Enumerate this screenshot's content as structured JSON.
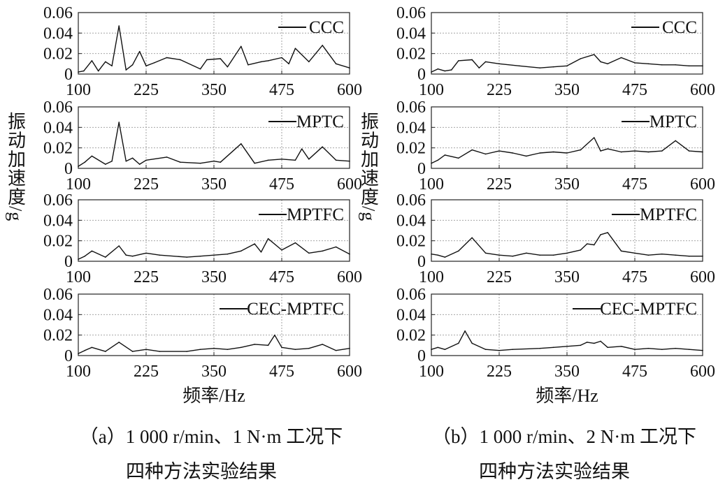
{
  "panels": [
    {
      "caption_line1": "（a）1 000 r/min、1 N·m 工况下",
      "caption_line2": "四种方法实验结果",
      "y_axis_label": "振动加速度/g",
      "x_axis_label": "频率/Hz"
    },
    {
      "caption_line1": "（b）1 000 r/min、2 N·m 工况下",
      "caption_line2": "四种方法实验结果",
      "y_axis_label": "振动加速度/g",
      "x_axis_label": "频率/Hz"
    }
  ],
  "chart_data": [
    {
      "type": "line",
      "panel": "a",
      "series": [
        {
          "name": "CCC",
          "x": [
            100,
            110,
            125,
            137,
            150,
            162,
            175,
            188,
            200,
            213,
            225,
            240,
            263,
            288,
            325,
            337,
            362,
            375,
            400,
            413,
            437,
            450,
            475,
            488,
            500,
            525,
            550,
            575,
            600
          ],
          "values": [
            0.002,
            0.003,
            0.013,
            0.003,
            0.012,
            0.008,
            0.047,
            0.004,
            0.009,
            0.022,
            0.008,
            0.011,
            0.016,
            0.014,
            0.005,
            0.014,
            0.015,
            0.007,
            0.027,
            0.009,
            0.012,
            0.013,
            0.016,
            0.01,
            0.025,
            0.012,
            0.028,
            0.01,
            0.006
          ]
        },
        {
          "name": "MPTC",
          "x": [
            100,
            112,
            125,
            150,
            162,
            175,
            188,
            200,
            213,
            225,
            263,
            288,
            325,
            350,
            362,
            400,
            425,
            450,
            475,
            500,
            512,
            525,
            550,
            575,
            600
          ],
          "values": [
            0.002,
            0.006,
            0.012,
            0.004,
            0.007,
            0.045,
            0.007,
            0.01,
            0.004,
            0.008,
            0.011,
            0.006,
            0.005,
            0.007,
            0.006,
            0.024,
            0.005,
            0.008,
            0.009,
            0.008,
            0.019,
            0.009,
            0.021,
            0.008,
            0.007
          ]
        },
        {
          "name": "MPTFC",
          "x": [
            100,
            112,
            125,
            150,
            175,
            188,
            200,
            225,
            250,
            300,
            325,
            350,
            375,
            400,
            425,
            437,
            450,
            475,
            500,
            525,
            550,
            575,
            600
          ],
          "values": [
            0.002,
            0.005,
            0.01,
            0.004,
            0.015,
            0.006,
            0.005,
            0.008,
            0.006,
            0.004,
            0.005,
            0.006,
            0.007,
            0.01,
            0.017,
            0.009,
            0.022,
            0.011,
            0.018,
            0.008,
            0.01,
            0.014,
            0.007
          ]
        },
        {
          "name": "CEC-MPTFC",
          "x": [
            100,
            112,
            125,
            150,
            175,
            200,
            225,
            250,
            300,
            325,
            350,
            375,
            400,
            425,
            450,
            462,
            475,
            500,
            525,
            550,
            575,
            600
          ],
          "values": [
            0.002,
            0.005,
            0.008,
            0.004,
            0.013,
            0.004,
            0.006,
            0.004,
            0.004,
            0.006,
            0.007,
            0.006,
            0.008,
            0.011,
            0.01,
            0.02,
            0.008,
            0.006,
            0.007,
            0.011,
            0.005,
            0.007
          ]
        }
      ],
      "xlim": [
        100,
        600
      ],
      "ylim": [
        0,
        0.06
      ],
      "x_ticks": [
        "100",
        "225",
        "350",
        "475",
        "600"
      ],
      "y_ticks": [
        "0",
        "0.02",
        "0.04",
        "0.06"
      ],
      "grid": true,
      "legend_position": "top-right"
    },
    {
      "type": "line",
      "panel": "b",
      "series": [
        {
          "name": "CCC",
          "x": [
            100,
            112,
            125,
            137,
            150,
            175,
            188,
            200,
            225,
            262,
            300,
            325,
            350,
            375,
            400,
            412,
            425,
            450,
            475,
            500,
            525,
            550,
            575,
            600
          ],
          "values": [
            0.002,
            0.005,
            0.003,
            0.004,
            0.013,
            0.014,
            0.006,
            0.012,
            0.01,
            0.008,
            0.006,
            0.007,
            0.008,
            0.015,
            0.019,
            0.012,
            0.01,
            0.016,
            0.011,
            0.01,
            0.009,
            0.009,
            0.008,
            0.008
          ]
        },
        {
          "name": "MPTC",
          "x": [
            100,
            112,
            125,
            150,
            175,
            200,
            225,
            250,
            275,
            300,
            325,
            350,
            375,
            400,
            412,
            425,
            450,
            475,
            500,
            525,
            550,
            575,
            600
          ],
          "values": [
            0.005,
            0.008,
            0.013,
            0.01,
            0.018,
            0.014,
            0.017,
            0.015,
            0.012,
            0.015,
            0.016,
            0.015,
            0.018,
            0.03,
            0.017,
            0.019,
            0.016,
            0.017,
            0.016,
            0.017,
            0.027,
            0.017,
            0.016
          ]
        },
        {
          "name": "MPTFC",
          "x": [
            100,
            112,
            125,
            150,
            175,
            200,
            225,
            250,
            275,
            300,
            325,
            350,
            375,
            387,
            400,
            412,
            425,
            450,
            475,
            500,
            525,
            550,
            575,
            600
          ],
          "values": [
            0.007,
            0.006,
            0.004,
            0.01,
            0.023,
            0.008,
            0.006,
            0.005,
            0.008,
            0.006,
            0.006,
            0.008,
            0.011,
            0.017,
            0.016,
            0.026,
            0.028,
            0.01,
            0.008,
            0.006,
            0.007,
            0.006,
            0.005,
            0.005
          ]
        },
        {
          "name": "CEC-MPTFC",
          "x": [
            100,
            112,
            125,
            150,
            162,
            175,
            200,
            225,
            250,
            300,
            325,
            350,
            375,
            387,
            400,
            412,
            425,
            450,
            475,
            500,
            525,
            550,
            575,
            600
          ],
          "values": [
            0.006,
            0.008,
            0.006,
            0.012,
            0.024,
            0.012,
            0.006,
            0.005,
            0.006,
            0.007,
            0.008,
            0.009,
            0.01,
            0.013,
            0.012,
            0.014,
            0.008,
            0.009,
            0.006,
            0.007,
            0.006,
            0.007,
            0.006,
            0.005
          ]
        }
      ],
      "xlim": [
        100,
        600
      ],
      "ylim": [
        0,
        0.06
      ],
      "x_ticks": [
        "100",
        "225",
        "350",
        "475",
        "600"
      ],
      "y_ticks": [
        "0",
        "0.02",
        "0.04",
        "0.06"
      ],
      "grid": true,
      "legend_position": "top-right"
    }
  ]
}
